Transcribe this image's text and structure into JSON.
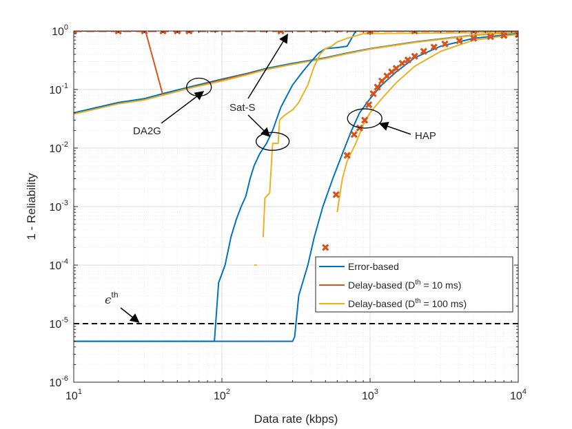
{
  "chart_data": {
    "type": "line",
    "title": "",
    "xlabel": "Data rate (kbps)",
    "ylabel": "1 - Reliability",
    "xscale": "log",
    "yscale": "log",
    "xlim": [
      10,
      10000
    ],
    "ylim": [
      1e-06,
      1
    ],
    "grid": true,
    "x_ticks": [
      {
        "value": 10,
        "base": "10",
        "exp": "1"
      },
      {
        "value": 100,
        "base": "10",
        "exp": "2"
      },
      {
        "value": 1000,
        "base": "10",
        "exp": "3"
      },
      {
        "value": 10000,
        "base": "10",
        "exp": "4"
      }
    ],
    "y_ticks": [
      {
        "value": 1,
        "base": "10",
        "exp": "0"
      },
      {
        "value": 0.1,
        "base": "10",
        "exp": "-1"
      },
      {
        "value": 0.01,
        "base": "10",
        "exp": "-2"
      },
      {
        "value": 0.001,
        "base": "10",
        "exp": "-3"
      },
      {
        "value": 0.0001,
        "base": "10",
        "exp": "-4"
      },
      {
        "value": 1e-05,
        "base": "10",
        "exp": "-5"
      },
      {
        "value": 1e-06,
        "base": "10",
        "exp": "-6"
      }
    ],
    "legend": {
      "placement": "bottom-right",
      "entries": [
        {
          "label": "Error-based",
          "color": "#0072BD"
        },
        {
          "label_pre": "Delay-based (D",
          "sup": "th",
          "label_post": " = 10 ms)",
          "color": "#D95319"
        },
        {
          "label_pre": "Delay-based (D",
          "sup": "th",
          "label_post": " = 100 ms)",
          "color": "#EDB120"
        }
      ]
    },
    "threshold": {
      "label": "ϵ",
      "sup": "th",
      "value": 1e-05,
      "color": "#000000"
    },
    "annotations": [
      {
        "text": "DA2G",
        "ellipse_center": [
          70,
          0.11
        ],
        "arrow_to": [
          75,
          0.103
        ]
      },
      {
        "text": "Sat-S",
        "ellipse_center": [
          220,
          0.013
        ],
        "arrow_to_upper": [
          260,
          1.0
        ],
        "arrow_to_lower": [
          210,
          0.015
        ]
      },
      {
        "text": "HAP",
        "ellipse_center": [
          920,
          0.032
        ],
        "arrow_to": [
          1000,
          0.03
        ]
      }
    ],
    "series": [
      {
        "name": "DA2G Error-based",
        "color": "#0072BD",
        "style": "solid",
        "x": [
          10,
          20,
          30,
          40,
          60,
          100,
          150,
          200,
          300,
          500,
          700,
          1000,
          2000,
          5000,
          10000
        ],
        "y": [
          0.04,
          0.06,
          0.07,
          0.085,
          0.11,
          0.15,
          0.19,
          0.23,
          0.28,
          0.35,
          0.42,
          0.5,
          0.65,
          0.85,
          0.95
        ]
      },
      {
        "name": "DA2G Delay-based (Dth = 10 ms)",
        "color": "#D95319",
        "style": "solid",
        "x": [
          10,
          20,
          30,
          30.5,
          40,
          60,
          100,
          150,
          200,
          300,
          500,
          700,
          1000,
          2000,
          5000,
          10000
        ],
        "y": [
          1,
          1,
          1,
          1,
          0.08,
          0.105,
          0.145,
          0.185,
          0.22,
          0.27,
          0.34,
          0.41,
          0.49,
          0.64,
          0.84,
          0.95
        ]
      },
      {
        "name": "DA2G Delay-based (Dth = 100 ms)",
        "color": "#EDB120",
        "style": "solid",
        "x": [
          10,
          20,
          30,
          40,
          60,
          100,
          150,
          200,
          300,
          500,
          700,
          1000,
          2000,
          5000,
          10000
        ],
        "y": [
          0.038,
          0.057,
          0.066,
          0.08,
          0.105,
          0.14,
          0.18,
          0.22,
          0.27,
          0.34,
          0.41,
          0.49,
          0.64,
          0.84,
          0.95
        ]
      },
      {
        "name": "Sat-S Error-based",
        "color": "#0072BD",
        "style": "solid",
        "x": [
          10,
          89,
          95,
          105,
          115,
          125,
          135,
          145,
          155,
          165,
          180,
          200,
          220,
          250,
          300,
          350,
          400,
          450,
          500,
          600,
          700,
          800,
          10000
        ],
        "y": [
          5e-06,
          5e-06,
          5e-05,
          0.0001,
          0.0003,
          0.0006,
          0.001,
          0.0015,
          0.003,
          0.005,
          0.008,
          0.012,
          0.02,
          0.05,
          0.12,
          0.2,
          0.3,
          0.42,
          0.5,
          0.52,
          0.55,
          1,
          1
        ]
      },
      {
        "name": "Sat-S Delay-based (Dth = 100 ms)",
        "color": "#EDB120",
        "style": "solid",
        "x": [
          190,
          195,
          205,
          210,
          220,
          240,
          245,
          260,
          280,
          300,
          330,
          350,
          380,
          420,
          460,
          500,
          550,
          600,
          700,
          900,
          10000
        ],
        "y": [
          0.0003,
          0.0014,
          0.0016,
          0.0017,
          0.012,
          0.012,
          0.03,
          0.035,
          0.04,
          0.045,
          0.06,
          0.08,
          0.12,
          0.25,
          0.4,
          0.5,
          0.55,
          0.65,
          0.75,
          0.9,
          0.95
        ]
      },
      {
        "name": "HAP Error-based",
        "color": "#0072BD",
        "style": "solid",
        "x": [
          10,
          300,
          310,
          330,
          380,
          420,
          480,
          560,
          650,
          750,
          850,
          1000,
          1200,
          1500,
          2000,
          3000,
          5000,
          10000
        ],
        "y": [
          5e-06,
          5e-06,
          6e-06,
          3e-05,
          0.0001,
          0.0003,
          0.001,
          0.003,
          0.008,
          0.02,
          0.04,
          0.07,
          0.12,
          0.2,
          0.35,
          0.55,
          0.75,
          0.9
        ]
      },
      {
        "name": "HAP Delay-based (Dth = 100 ms)",
        "color": "#EDB120",
        "style": "solid",
        "x": [
          600,
          650,
          700,
          800,
          900,
          1000,
          1200,
          1500,
          2000,
          3000,
          5000,
          10000
        ],
        "y": [
          0.0008,
          0.003,
          0.006,
          0.012,
          0.025,
          0.04,
          0.07,
          0.13,
          0.25,
          0.45,
          0.7,
          0.88
        ]
      },
      {
        "name": "Sat-S Delay-based (Dth = 100 ms) point",
        "color": "#EDB120",
        "style": "solid",
        "x": [
          165,
          172
        ],
        "y": [
          0.0001,
          0.0001
        ]
      },
      {
        "name": "Sat-S Delay-based (Dth = 10 ms)",
        "color": "#D95319",
        "style": "dashed",
        "x": [
          10,
          10000
        ],
        "y": [
          1,
          1
        ]
      },
      {
        "name": "Sat-S / DA2G Delay-based (Dth = 10 ms) markers",
        "color": "#D95319",
        "style": "markers",
        "marker": "x",
        "x": [
          10,
          20,
          30,
          40,
          50,
          60,
          250,
          1000,
          2000,
          5000,
          10000
        ],
        "y": [
          1,
          1,
          1,
          1,
          1,
          1,
          1,
          1,
          1,
          1,
          1
        ]
      },
      {
        "name": "HAP Delay-based (Dth = 10 ms)",
        "color": "#D95319",
        "style": "markers",
        "marker": "x",
        "x": [
          500,
          590,
          700,
          780,
          850,
          920,
          980,
          1050,
          1120,
          1200,
          1300,
          1400,
          1500,
          1650,
          1800,
          2000,
          2300,
          2700,
          3200,
          4000,
          5000,
          6500,
          8000,
          10000
        ],
        "y": [
          0.0002,
          0.0016,
          0.0075,
          0.017,
          0.022,
          0.03,
          0.055,
          0.085,
          0.11,
          0.14,
          0.17,
          0.2,
          0.23,
          0.28,
          0.32,
          0.37,
          0.45,
          0.53,
          0.6,
          0.68,
          0.75,
          0.8,
          0.84,
          0.87
        ]
      }
    ]
  }
}
